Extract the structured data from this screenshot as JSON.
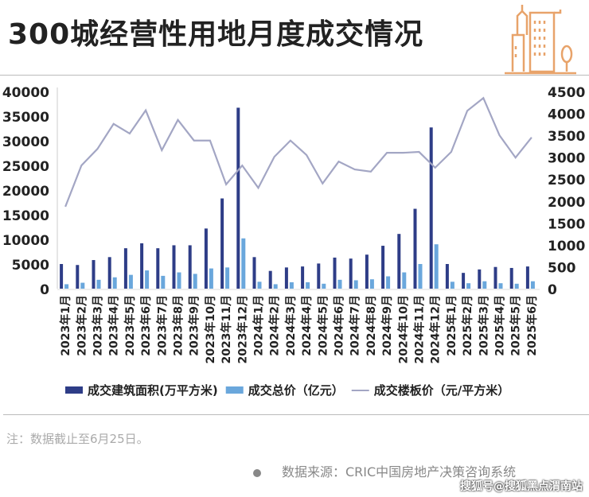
{
  "title": "300城经营性用地月度成交情况",
  "note": "注：数据截止至6月25日。",
  "source": "数据来源：CRIC中国房地产决策咨询系统",
  "watermark": "搜狐号@搜狐黑点渭南站",
  "colors": {
    "area": "#2e3d87",
    "price": "#6aa7dc",
    "unit_price": "#a3a6c4",
    "logo": "#e8a36a"
  },
  "chart_data": {
    "type": "bar",
    "title": "300城经营性用地月度成交情况",
    "categories": [
      "2023年1月",
      "2023年2月",
      "2023年3月",
      "2023年4月",
      "2023年5月",
      "2023年6月",
      "2023年7月",
      "2023年8月",
      "2023年9月",
      "2023年10月",
      "2023年11月",
      "2023年12月",
      "2024年1月",
      "2024年2月",
      "2024年3月",
      "2024年4月",
      "2024年5月",
      "2024年6月",
      "2024年7月",
      "2024年8月",
      "2024年9月",
      "2024年10月",
      "2024年11月",
      "2024年12月",
      "2025年1月",
      "2025年2月",
      "2025年3月",
      "2025年4月",
      "2025年5月",
      "2025年6月"
    ],
    "left_axis": {
      "ylim": [
        0,
        40000
      ],
      "ticks": [
        "0",
        "5000",
        "10000",
        "15000",
        "20000",
        "25000",
        "30000",
        "35000",
        "40000"
      ]
    },
    "right_axis": {
      "ylim": [
        0,
        4500
      ],
      "ticks": [
        "0",
        "500",
        "1000",
        "1500",
        "2000",
        "2500",
        "3000",
        "3500",
        "4000",
        "4500"
      ]
    },
    "series": [
      {
        "name": "成交建筑面积(万平方米)",
        "type": "bar",
        "axis": "left",
        "values": [
          5000,
          4800,
          5800,
          6400,
          8200,
          9200,
          8200,
          8800,
          8800,
          12200,
          18300,
          36700,
          6400,
          3600,
          4300,
          4500,
          5100,
          6300,
          6100,
          6900,
          8700,
          11100,
          16200,
          32700,
          5000,
          3200,
          3900,
          4400,
          4200,
          4500
        ]
      },
      {
        "name": "成交总价（亿元）",
        "type": "bar",
        "axis": "left",
        "values": [
          900,
          1200,
          1800,
          2300,
          2800,
          3700,
          2600,
          3300,
          3000,
          4100,
          4300,
          10200,
          1400,
          900,
          1300,
          1300,
          1000,
          1800,
          1700,
          1900,
          2500,
          3300,
          5000,
          9000,
          1400,
          1100,
          1500,
          1100,
          1000,
          1500
        ]
      },
      {
        "name": "成交楼板价（元/平方米）",
        "type": "line",
        "axis": "right",
        "values": [
          1870,
          2810,
          3190,
          3760,
          3540,
          4070,
          3160,
          3850,
          3380,
          3380,
          2380,
          2810,
          2300,
          3010,
          3380,
          3050,
          2400,
          2900,
          2720,
          2670,
          3100,
          3100,
          3120,
          2760,
          3120,
          4060,
          4350,
          3500,
          2990,
          3450
        ]
      }
    ],
    "legend": "bottom"
  }
}
